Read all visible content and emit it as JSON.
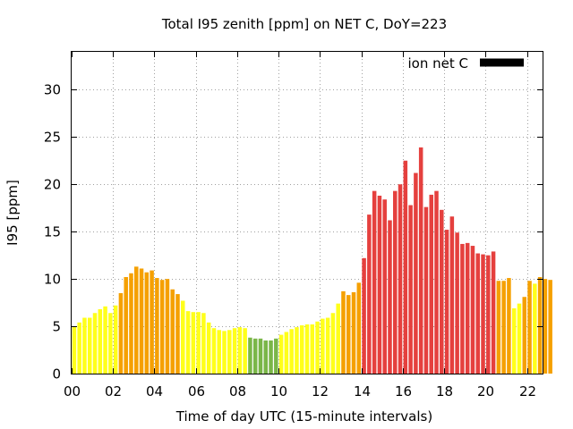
{
  "chart_data": {
    "type": "bar",
    "title": "Total I95 zenith [ppm] on NET C, DoY=223",
    "xlabel": "Time of day UTC (15-minute intervals)",
    "ylabel": "I95 [ppm]",
    "x_ticks": [
      "00",
      "02",
      "04",
      "06",
      "08",
      "10",
      "12",
      "14",
      "16",
      "18",
      "20",
      "22"
    ],
    "x_tick_hours": [
      0,
      2,
      4,
      6,
      8,
      10,
      12,
      14,
      16,
      18,
      20,
      22
    ],
    "xlim_hours": [
      0,
      22.75
    ],
    "y_ticks": [
      "0",
      "5",
      "10",
      "15",
      "20",
      "25",
      "30"
    ],
    "y_tick_values": [
      0,
      5,
      10,
      15,
      20,
      25,
      30
    ],
    "ylim": [
      0,
      34
    ],
    "grid": true,
    "legend": {
      "label": "ion net C",
      "color": "#000000",
      "placement": "top-right"
    },
    "bar_interval_hours": 0.25,
    "colors": {
      "green": "#7ab648",
      "yellow": "#ffff1a",
      "orange": "#f5a000",
      "red": "#e5403e"
    },
    "values": [
      5.0,
      5.4,
      5.9,
      5.9,
      6.4,
      6.8,
      7.1,
      6.4,
      7.2,
      8.5,
      10.2,
      10.6,
      11.3,
      11.1,
      10.7,
      10.9,
      10.1,
      9.9,
      10.0,
      8.9,
      8.4,
      7.7,
      6.6,
      6.5,
      6.5,
      6.4,
      5.4,
      4.8,
      4.6,
      4.5,
      4.6,
      4.8,
      4.9,
      4.8,
      3.8,
      3.7,
      3.7,
      3.5,
      3.5,
      3.7,
      4.1,
      4.4,
      4.7,
      4.9,
      5.1,
      5.2,
      5.2,
      5.5,
      5.8,
      5.9,
      6.4,
      7.4,
      8.7,
      8.3,
      8.6,
      9.6,
      12.2,
      16.8,
      19.3,
      18.8,
      18.4,
      16.2,
      19.3,
      20.0,
      22.5,
      17.8,
      21.2,
      23.9,
      17.6,
      18.9,
      19.3,
      17.3,
      15.2,
      16.6,
      14.9,
      13.7,
      13.8,
      13.5,
      12.7,
      12.6,
      12.5,
      12.9,
      9.8,
      9.8,
      10.1,
      6.9,
      7.4,
      8.1,
      9.8,
      9.5,
      10.2,
      10.0,
      9.9
    ],
    "bar_colors": [
      "yellow",
      "yellow",
      "yellow",
      "yellow",
      "yellow",
      "yellow",
      "yellow",
      "yellow",
      "yellow",
      "orange",
      "orange",
      "orange",
      "orange",
      "orange",
      "orange",
      "orange",
      "orange",
      "orange",
      "orange",
      "orange",
      "orange",
      "yellow",
      "yellow",
      "yellow",
      "yellow",
      "yellow",
      "yellow",
      "yellow",
      "yellow",
      "yellow",
      "yellow",
      "yellow",
      "yellow",
      "yellow",
      "green",
      "green",
      "green",
      "green",
      "green",
      "green",
      "yellow",
      "yellow",
      "yellow",
      "yellow",
      "yellow",
      "yellow",
      "yellow",
      "yellow",
      "yellow",
      "yellow",
      "yellow",
      "yellow",
      "orange",
      "orange",
      "orange",
      "orange",
      "red",
      "red",
      "red",
      "red",
      "red",
      "red",
      "red",
      "red",
      "red",
      "red",
      "red",
      "red",
      "red",
      "red",
      "red",
      "red",
      "red",
      "red",
      "red",
      "red",
      "red",
      "red",
      "red",
      "red",
      "red",
      "red",
      "orange",
      "orange",
      "orange",
      "yellow",
      "yellow",
      "orange",
      "orange",
      "yellow",
      "orange",
      "orange",
      "orange"
    ]
  }
}
